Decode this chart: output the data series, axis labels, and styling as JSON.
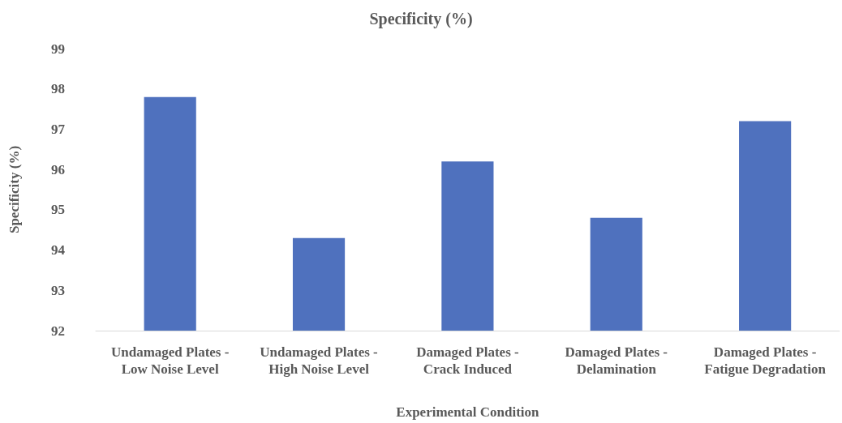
{
  "chart_data": {
    "type": "bar",
    "title": "Specificity (%)",
    "xlabel": "Experimental Condition",
    "ylabel": "Specificity (%)",
    "categories": [
      "Undamaged Plates - Low Noise Level",
      "Undamaged Plates - High Noise Level",
      "Damaged Plates - Crack Induced",
      "Damaged Plates - Delamination",
      "Damaged Plates - Fatigue Degradation"
    ],
    "values": [
      97.8,
      94.3,
      96.2,
      94.8,
      97.2
    ],
    "color": "#4f71be",
    "ylim": [
      92,
      99
    ],
    "yticks": [
      92,
      93,
      94,
      95,
      96,
      97,
      98,
      99
    ],
    "grid": false
  }
}
